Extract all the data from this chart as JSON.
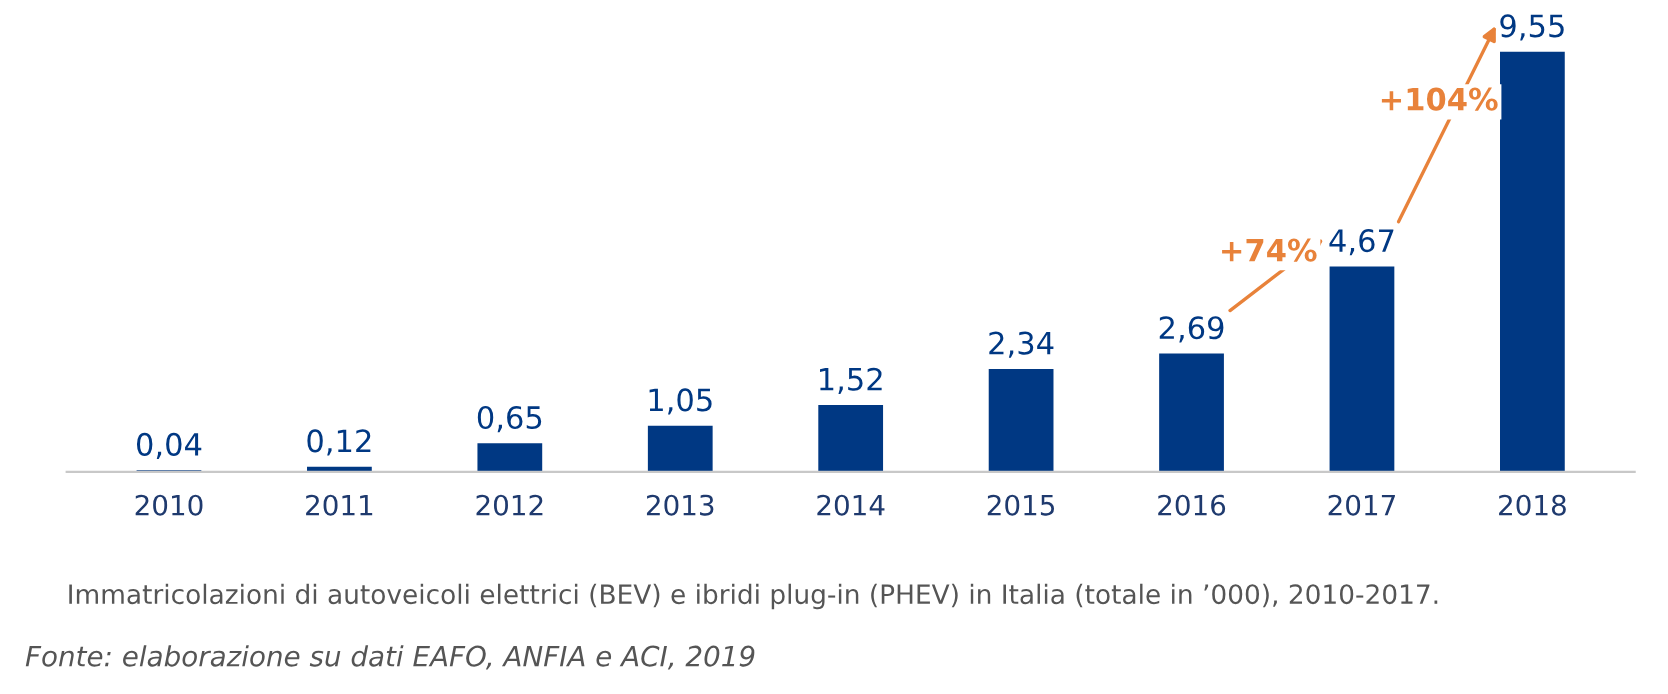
{
  "chart_data": {
    "type": "bar",
    "categories": [
      "2010",
      "2011",
      "2012",
      "2013",
      "2014",
      "2015",
      "2016",
      "2017",
      "2018"
    ],
    "values": [
      0.04,
      0.12,
      0.65,
      1.05,
      1.52,
      2.34,
      2.69,
      4.67,
      9.55
    ],
    "value_labels": [
      "0,04",
      "0,12",
      "0,65",
      "1,05",
      "1,52",
      "2,34",
      "2,69",
      "4,67",
      "9,55"
    ],
    "color": "#003883",
    "grid": false,
    "legend": false,
    "annotations": [
      "+74%",
      "+104%",
      "Immatricolazioni di autoveicoli elettrici (BEV) e ibridi plug-in (PHEV) in Italia (totale in ’000), 2010-2017.",
      "Fonte: elaborazione su dati EAFO, ANFIA e ACI, 2019"
    ]
  }
}
